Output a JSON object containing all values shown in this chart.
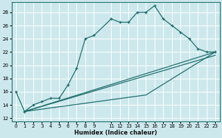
{
  "xlabel": "Humidex (Indice chaleur)",
  "ylabel": "",
  "bg_color": "#cce8ec",
  "grid_color": "#ffffff",
  "line_color": "#1a6b6b",
  "xlim": [
    -0.5,
    23.5
  ],
  "ylim": [
    11.5,
    29.5
  ],
  "xtick_positions": [
    0,
    1,
    2,
    3,
    4,
    5,
    6,
    7,
    8,
    9,
    11,
    12,
    13,
    14,
    15,
    16,
    17,
    18,
    19,
    20,
    21,
    22,
    23
  ],
  "ytick_positions": [
    12,
    14,
    16,
    18,
    20,
    22,
    24,
    26,
    28
  ],
  "line1_x": [
    0,
    1,
    2,
    3,
    4,
    5,
    6,
    7,
    8,
    9,
    11,
    12,
    13,
    14,
    15,
    16,
    17,
    18,
    19,
    20,
    21,
    22,
    23
  ],
  "line1_y": [
    16,
    13,
    14,
    14.5,
    15,
    15,
    17,
    19.5,
    24,
    24.5,
    27,
    26.5,
    26.5,
    28,
    28,
    29,
    27,
    26,
    25,
    24,
    22.5,
    22,
    22
  ],
  "line2_x": [
    1,
    23
  ],
  "line2_y": [
    13,
    21.5
  ],
  "line3_x": [
    1,
    23
  ],
  "line3_y": [
    13,
    22
  ],
  "line4_x": [
    1,
    15,
    23
  ],
  "line4_y": [
    13,
    15.5,
    22
  ]
}
